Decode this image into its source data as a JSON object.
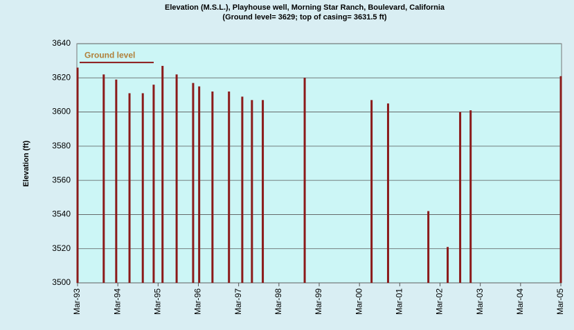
{
  "chart_data": {
    "type": "bar",
    "title": "Elevation (M.S.L.), Playhouse well, Morning Star Ranch, Boulevard, California",
    "subtitle": "(Ground level= 3629; top of casing= 3631.5 ft)",
    "y_label": "Elevation (ft)",
    "annotation": "Ground level",
    "ground_level": 3629,
    "color": "#8b1a1a",
    "x": [
      1993.17,
      1993.82,
      1994.13,
      1994.46,
      1994.79,
      1995.06,
      1995.28,
      1995.63,
      1996.04,
      1996.19,
      1996.52,
      1996.93,
      1997.26,
      1997.5,
      1997.77,
      1998.81,
      2000.47,
      2000.88,
      2001.88,
      2002.36,
      2002.67,
      2002.93,
      2005.17
    ],
    "values": [
      3626,
      3622,
      3619,
      3611,
      3611,
      3616,
      3627,
      3622,
      3617,
      3615,
      3612,
      3612,
      3609,
      3607,
      3607,
      3620,
      3607,
      3605,
      3542,
      3521,
      3600,
      3601,
      3621
    ],
    "xlim": [
      1993.17,
      2005.17
    ],
    "xticks": [
      {
        "value": 1993.17,
        "label": "Mar-93"
      },
      {
        "value": 1994.17,
        "label": "Mar-94"
      },
      {
        "value": 1995.17,
        "label": "Mar-95"
      },
      {
        "value": 1996.17,
        "label": "Mar-96"
      },
      {
        "value": 1997.17,
        "label": "Mar-97"
      },
      {
        "value": 1998.17,
        "label": "Mar-98"
      },
      {
        "value": 1999.17,
        "label": "Mar-99"
      },
      {
        "value": 2000.17,
        "label": "Mar-00"
      },
      {
        "value": 2001.17,
        "label": "Mar-01"
      },
      {
        "value": 2002.17,
        "label": "Mar-02"
      },
      {
        "value": 2003.17,
        "label": "Mar-03"
      },
      {
        "value": 2004.17,
        "label": "Mar-04"
      },
      {
        "value": 2005.17,
        "label": "Mar-05"
      }
    ],
    "ylim": [
      3500,
      3640
    ],
    "yticks": [
      3500,
      3520,
      3540,
      3560,
      3580,
      3600,
      3620,
      3640
    ],
    "grid": true
  }
}
